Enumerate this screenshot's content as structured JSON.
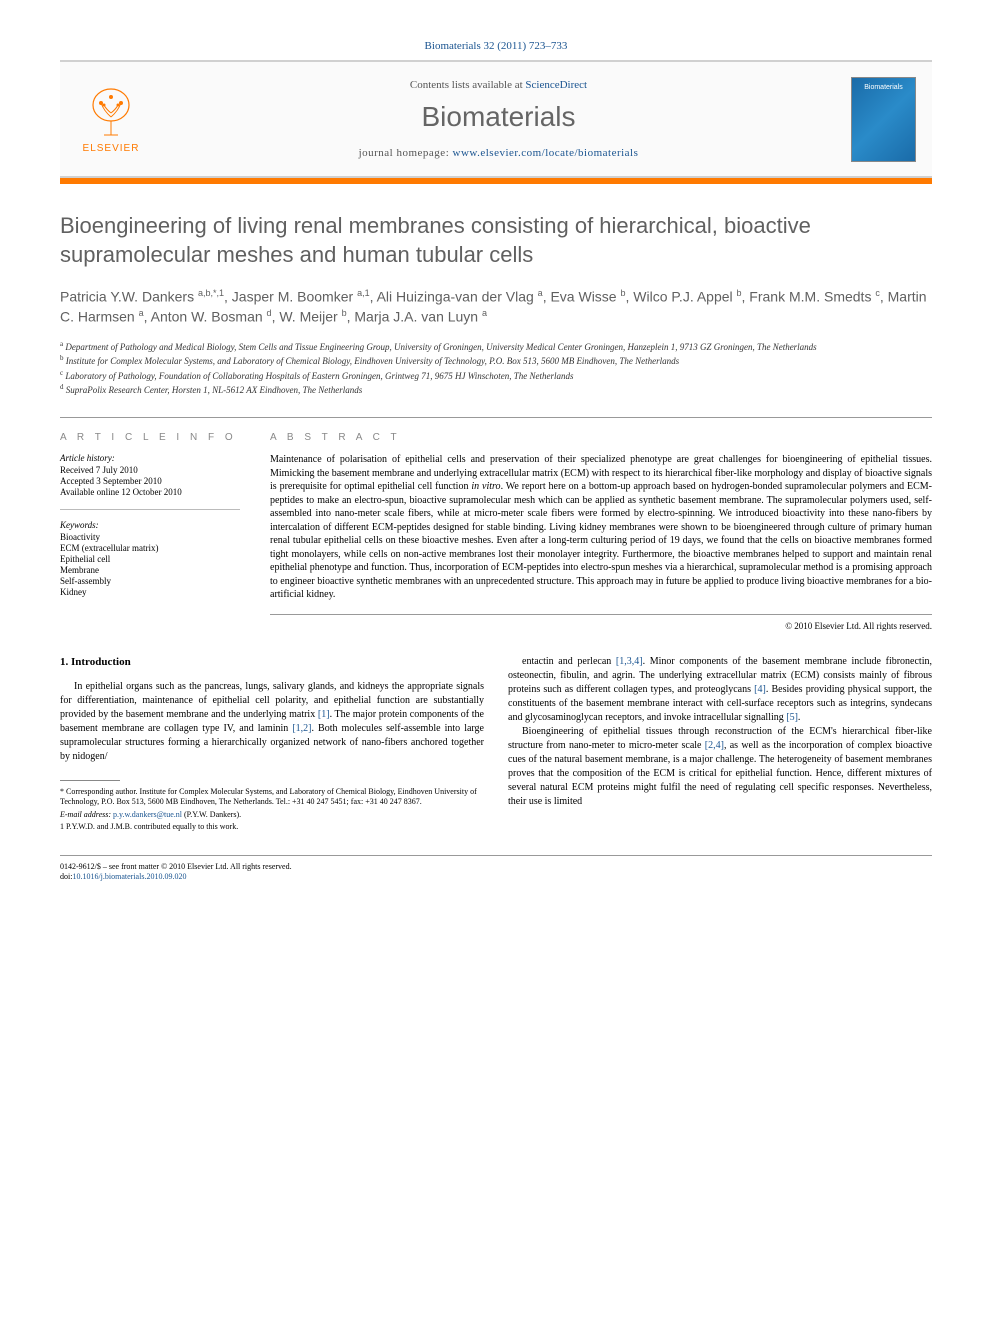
{
  "citation": {
    "journal": "Biomaterials",
    "volume_issue": "32 (2011) 723–733",
    "text": "Biomaterials 32 (2011) 723–733"
  },
  "masthead": {
    "contents_prefix": "Contents lists available at ",
    "contents_link": "ScienceDirect",
    "journal_name": "Biomaterials",
    "homepage_prefix": "journal homepage: ",
    "homepage_url": "www.elsevier.com/locate/biomaterials",
    "publisher_name": "ELSEVIER",
    "cover_label": "Biomaterials",
    "colors": {
      "orange": "#ff7a00",
      "cover_gradient_start": "#1a6ba8",
      "cover_gradient_mid": "#2a8bc9",
      "cover_gradient_end": "#1a6ba8",
      "border": "#d0d0d0",
      "link": "#1a5490",
      "heading_gray": "#606060"
    }
  },
  "title": "Bioengineering of living renal membranes consisting of hierarchical, bioactive supramolecular meshes and human tubular cells",
  "authors_html": "Patricia Y.W. Dankers <sup>a,b,*,1</sup>, Jasper M. Boomker <sup>a,1</sup>, Ali Huizinga-van der Vlag <sup>a</sup>, Eva Wisse <sup>b</sup>, Wilco P.J. Appel <sup>b</sup>, Frank M.M. Smedts <sup>c</sup>, Martin C. Harmsen <sup>a</sup>, Anton W. Bosman <sup>d</sup>, W. Meijer <sup>b</sup>, Marja J.A. van Luyn <sup>a</sup>",
  "affiliations": [
    {
      "key": "a",
      "text": "Department of Pathology and Medical Biology, Stem Cells and Tissue Engineering Group, University of Groningen, University Medical Center Groningen, Hanzeplein 1, 9713 GZ Groningen, The Netherlands"
    },
    {
      "key": "b",
      "text": "Institute for Complex Molecular Systems, and Laboratory of Chemical Biology, Eindhoven University of Technology, P.O. Box 513, 5600 MB Eindhoven, The Netherlands"
    },
    {
      "key": "c",
      "text": "Laboratory of Pathology, Foundation of Collaborating Hospitals of Eastern Groningen, Grintweg 71, 9675 HJ Winschoten, The Netherlands"
    },
    {
      "key": "d",
      "text": "SupraPolix Research Center, Horsten 1, NL-5612 AX Eindhoven, The Netherlands"
    }
  ],
  "article_info": {
    "heading": "A R T I C L E   I N F O",
    "history_label": "Article history:",
    "history": [
      "Received 7 July 2010",
      "Accepted 3 September 2010",
      "Available online 12 October 2010"
    ],
    "keywords_label": "Keywords:",
    "keywords": [
      "Bioactivity",
      "ECM (extracellular matrix)",
      "Epithelial cell",
      "Membrane",
      "Self-assembly",
      "Kidney"
    ]
  },
  "abstract": {
    "heading": "A B S T R A C T",
    "text": "Maintenance of polarisation of epithelial cells and preservation of their specialized phenotype are great challenges for bioengineering of epithelial tissues. Mimicking the basement membrane and underlying extracellular matrix (ECM) with respect to its hierarchical fiber-like morphology and display of bioactive signals is prerequisite for optimal epithelial cell function in vitro. We report here on a bottom-up approach based on hydrogen-bonded supramolecular polymers and ECM-peptides to make an electro-spun, bioactive supramolecular mesh which can be applied as synthetic basement membrane. The supramolecular polymers used, self-assembled into nano-meter scale fibers, while at micro-meter scale fibers were formed by electro-spinning. We introduced bioactivity into these nano-fibers by intercalation of different ECM-peptides designed for stable binding. Living kidney membranes were shown to be bioengineered through culture of primary human renal tubular epithelial cells on these bioactive meshes. Even after a long-term culturing period of 19 days, we found that the cells on bioactive membranes formed tight monolayers, while cells on non-active membranes lost their monolayer integrity. Furthermore, the bioactive membranes helped to support and maintain renal epithelial phenotype and function. Thus, incorporation of ECM-peptides into electro-spun meshes via a hierarchical, supramolecular method is a promising approach to engineer bioactive synthetic membranes with an unprecedented structure. This approach may in future be applied to produce living bioactive membranes for a bio-artificial kidney.",
    "copyright": "© 2010 Elsevier Ltd. All rights reserved."
  },
  "body": {
    "section_number": "1.",
    "section_title": "Introduction",
    "col1_p1": "In epithelial organs such as the pancreas, lungs, salivary glands, and kidneys the appropriate signals for differentiation, maintenance of epithelial cell polarity, and epithelial function are substantially provided by the basement membrane and the underlying matrix [1]. The major protein components of the basement membrane are collagen type IV, and laminin [1,2]. Both molecules self-assemble into large supramolecular structures forming a hierarchically organized network of nano-fibers anchored together by nidogen/",
    "col2_p1": "entactin and perlecan [1,3,4]. Minor components of the basement membrane include fibronectin, osteonectin, fibulin, and agrin. The underlying extracellular matrix (ECM) consists mainly of fibrous proteins such as different collagen types, and proteoglycans [4]. Besides providing physical support, the constituents of the basement membrane interact with cell-surface receptors such as integrins, syndecans and glycosaminoglycan receptors, and invoke intracellular signalling [5].",
    "col2_p2": "Bioengineering of epithelial tissues through reconstruction of the ECM's hierarchical fiber-like structure from nano-meter to micro-meter scale [2,4], as well as the incorporation of complex bioactive cues of the natural basement membrane, is a major challenge. The heterogeneity of basement membranes proves that the composition of the ECM is critical for epithelial function. Hence, different mixtures of several natural ECM proteins might fulfil the need of regulating cell specific responses. Nevertheless, their use is limited"
  },
  "footnotes": {
    "corresponding": "* Corresponding author. Institute for Complex Molecular Systems, and Laboratory of Chemical Biology, Eindhoven University of Technology, P.O. Box 513, 5600 MB Eindhoven, The Netherlands. Tel.: +31 40 247 5451; fax: +31 40 247 8367.",
    "email_label": "E-mail address: ",
    "email": "p.y.w.dankers@tue.nl",
    "email_suffix": " (P.Y.W. Dankers).",
    "equal": "1 P.Y.W.D. and J.M.B. contributed equally to this work."
  },
  "bottom": {
    "issn_line": "0142-9612/$ – see front matter © 2010 Elsevier Ltd. All rights reserved.",
    "doi_label": "doi:",
    "doi": "10.1016/j.biomaterials.2010.09.020"
  }
}
